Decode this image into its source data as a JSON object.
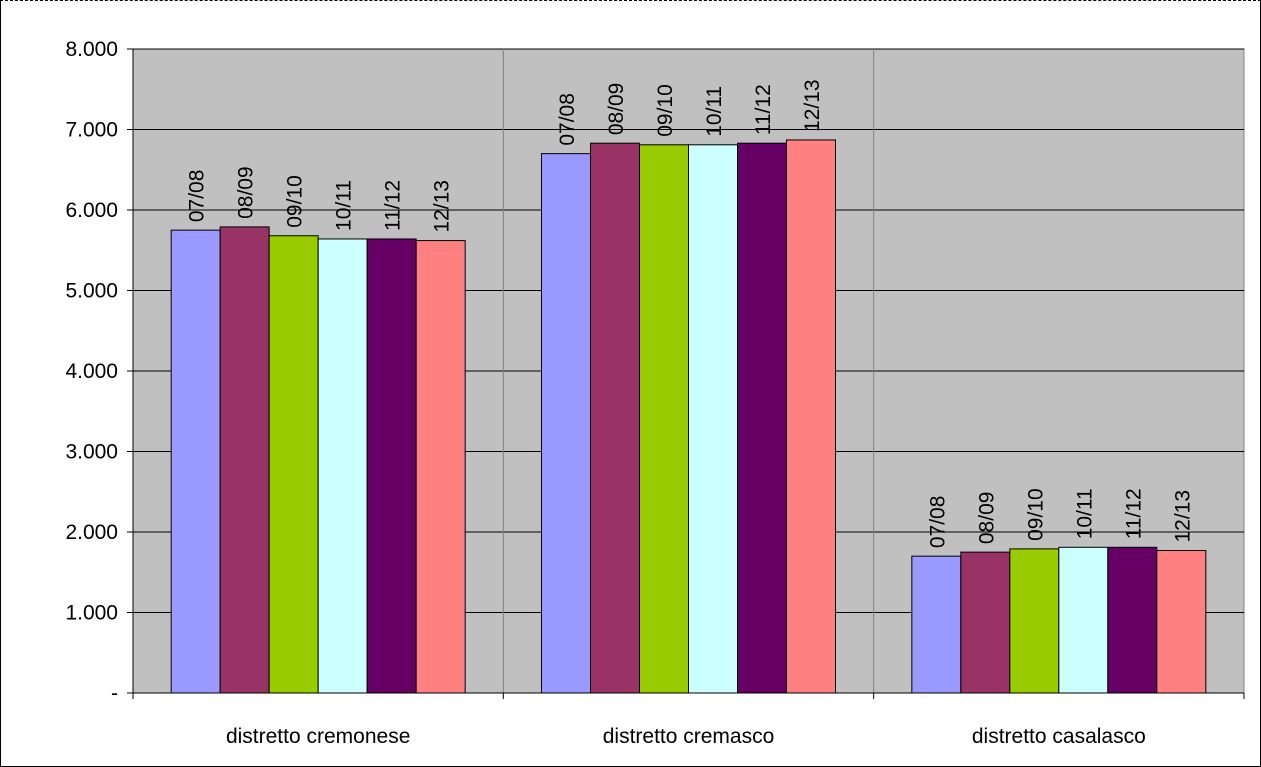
{
  "chart_data": {
    "type": "bar",
    "categories": [
      "distretto cremonese",
      "distretto cremasco",
      "distretto casalasco"
    ],
    "series": [
      {
        "name": "07/08",
        "color": "#9999ff",
        "values": [
          5750,
          6700,
          1700
        ]
      },
      {
        "name": "08/09",
        "color": "#993366",
        "values": [
          5790,
          6830,
          1750
        ]
      },
      {
        "name": "09/10",
        "color": "#99cc00",
        "values": [
          5680,
          6810,
          1790
        ]
      },
      {
        "name": "10/11",
        "color": "#ccffff",
        "values": [
          5640,
          6810,
          1810
        ]
      },
      {
        "name": "11/12",
        "color": "#660066",
        "values": [
          5640,
          6830,
          1810
        ]
      },
      {
        "name": "12/13",
        "color": "#ff8080",
        "values": [
          5620,
          6870,
          1770
        ]
      }
    ],
    "data_labels": "series-name",
    "y_ticks": [
      "-",
      "1.000",
      "2.000",
      "3.000",
      "4.000",
      "5.000",
      "6.000",
      "7.000",
      "8.000"
    ],
    "ylim": [
      0,
      8000
    ],
    "grid": true,
    "plot_background": "#c0c0c0",
    "legend": "none"
  }
}
